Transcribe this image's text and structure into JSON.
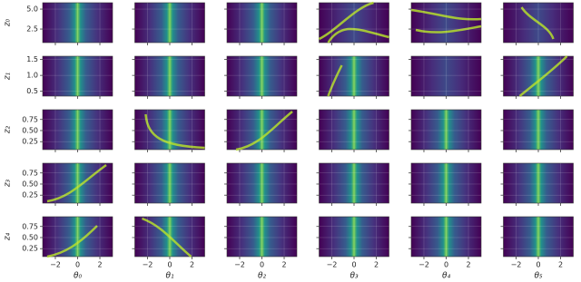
{
  "chart_data": {
    "type": "heatmap-grid",
    "grid": true,
    "xlim": [
      -3.14,
      3.14
    ],
    "xticks": [
      {
        "value": -2,
        "label": "−2"
      },
      0,
      2
    ],
    "columns": [
      "θ₀",
      "θ₁",
      "θ₂",
      "θ₃",
      "θ₄",
      "θ₅"
    ],
    "rows": [
      {
        "label": "z₀",
        "ylim": [
          0.8,
          5.8
        ],
        "yticks": [
          2.5,
          {
            "value": 5,
            "label": "5.0"
          }
        ]
      },
      {
        "label": "z₁",
        "ylim": [
          0.35,
          1.6
        ],
        "yticks": [
          0.5,
          {
            "value": 1,
            "label": "1.0"
          },
          1.5
        ]
      },
      {
        "label": "z₂",
        "ylim": [
          0.07,
          0.97
        ],
        "yticks": [
          0.25,
          {
            "value": 0.5,
            "label": "0.50"
          },
          0.75
        ]
      },
      {
        "label": "z₃",
        "ylim": [
          0.07,
          0.97
        ],
        "yticks": [
          0.25,
          {
            "value": 0.5,
            "label": "0.50"
          },
          0.75
        ]
      },
      {
        "label": "z₄",
        "ylim": [
          0.07,
          0.97
        ],
        "yticks": [
          0.25,
          {
            "value": 0.5,
            "label": "0.50"
          },
          0.75
        ]
      }
    ]
  }
}
